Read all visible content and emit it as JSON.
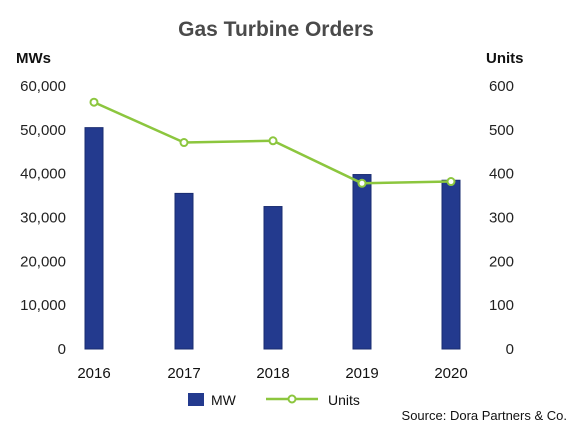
{
  "chart_data": {
    "type": "bar",
    "title": "Gas Turbine Orders",
    "categories": [
      "2016",
      "2017",
      "2018",
      "2019",
      "2020"
    ],
    "series": [
      {
        "name": "MW",
        "type": "bar",
        "axis": "left",
        "values": [
          50500,
          35500,
          32500,
          39800,
          38500
        ]
      },
      {
        "name": "Units",
        "type": "line",
        "axis": "right",
        "values": [
          563,
          471,
          475,
          378,
          382
        ]
      }
    ],
    "y_left": {
      "label": "MWs",
      "ylim": [
        0,
        60000
      ],
      "ticks": [
        0,
        10000,
        20000,
        30000,
        40000,
        50000,
        60000
      ],
      "tick_labels": [
        "0",
        "10,000",
        "20,000",
        "30,000",
        "40,000",
        "50,000",
        "60,000"
      ]
    },
    "y_right": {
      "label": "Units",
      "ylim": [
        0,
        600
      ],
      "ticks": [
        0,
        100,
        200,
        300,
        400,
        500,
        600
      ],
      "tick_labels": [
        "0",
        "100",
        "200",
        "300",
        "400",
        "500",
        "600"
      ]
    },
    "grid": false,
    "legend": {
      "position": "bottom-center",
      "entries": [
        "MW",
        "Units"
      ]
    },
    "source": "Source: Dora Partners & Co.",
    "colors": {
      "bar": "#233a8e",
      "bar_edge": "#1a2c70",
      "line": "#8cc63e",
      "marker_fill": "#ffffff"
    }
  }
}
